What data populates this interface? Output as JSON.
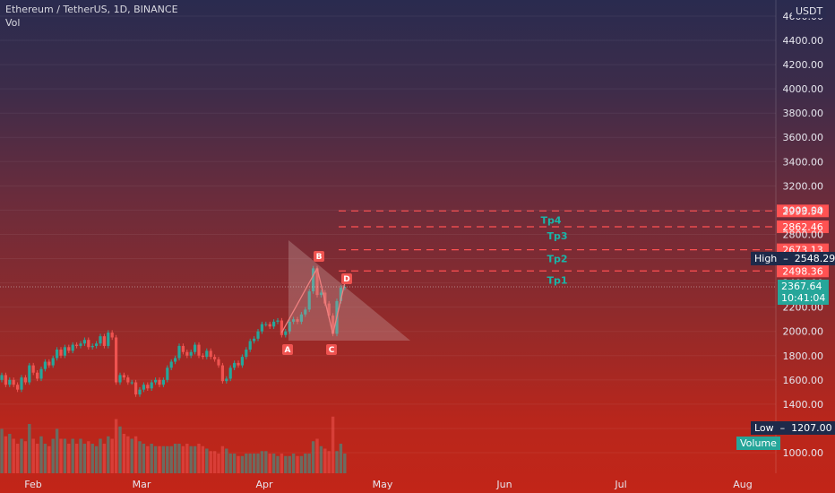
{
  "header": {
    "title": "Ethereum / TetherUS, 1D, BINANCE",
    "vol_label": "Vol"
  },
  "axis": {
    "currency": "USDT",
    "last_price": "2367.64",
    "countdown": "10:41:04"
  },
  "markers": {
    "high_label": "High",
    "high_value": "2548.29",
    "low_label": "Low",
    "low_value": "1207.00",
    "volume_badge": "Volume"
  },
  "colors": {
    "up": "#26a69a",
    "down": "#ef5350",
    "target": "#ff5252",
    "triangle": "#c8a0a0"
  },
  "chart_data": {
    "type": "candlestick",
    "title": "Ethereum / TetherUS, 1D, BINANCE",
    "y_ticks": [
      "1000.00",
      "1200.00",
      "1400.00",
      "1600.00",
      "1800.00",
      "2000.00",
      "2200.00",
      "2400.00",
      "2600.00",
      "2800.00",
      "3000.00",
      "3200.00",
      "3400.00",
      "3600.00",
      "3800.00",
      "4000.00",
      "4200.00",
      "4400.00",
      "4600.00"
    ],
    "x_ticks": [
      "Feb",
      "Mar",
      "Apr",
      "May",
      "Jun",
      "Jul",
      "Aug"
    ],
    "ylim": [
      900,
      4650
    ],
    "targets": [
      {
        "name": "Tp1",
        "price": 2498.36
      },
      {
        "name": "Tp2",
        "price": 2673.13
      },
      {
        "name": "Tp3",
        "price": 2862.46
      },
      {
        "name": "Tp4",
        "price": 2993.54
      }
    ],
    "pattern_points": [
      {
        "label": "A",
        "day": 71,
        "price": 1990
      },
      {
        "label": "B",
        "day": 80,
        "price": 2520
      },
      {
        "label": "C",
        "day": 84,
        "price": 1980
      },
      {
        "label": "D",
        "day": 87,
        "price": 2400
      }
    ],
    "closes": [
      1640,
      1560,
      1600,
      1560,
      1520,
      1620,
      1580,
      1720,
      1660,
      1610,
      1690,
      1750,
      1720,
      1780,
      1850,
      1800,
      1870,
      1840,
      1890,
      1880,
      1900,
      1930,
      1870,
      1880,
      1900,
      1960,
      1880,
      1990,
      1950,
      1580,
      1640,
      1620,
      1580,
      1580,
      1480,
      1520,
      1560,
      1530,
      1580,
      1600,
      1560,
      1600,
      1700,
      1750,
      1780,
      1880,
      1830,
      1800,
      1830,
      1890,
      1800,
      1790,
      1840,
      1790,
      1770,
      1720,
      1590,
      1610,
      1700,
      1740,
      1720,
      1790,
      1850,
      1920,
      1940,
      2000,
      2060,
      2060,
      2040,
      2080,
      2090,
      1970,
      2000,
      2080,
      2100,
      2080,
      2140,
      2180,
      2330,
      2520,
      2300,
      2320,
      2230,
      2130,
      1980,
      2250,
      2360,
      2367
    ],
    "volumes": [
      90,
      75,
      80,
      70,
      60,
      70,
      65,
      100,
      70,
      60,
      75,
      60,
      55,
      70,
      90,
      70,
      70,
      60,
      70,
      60,
      70,
      60,
      65,
      60,
      55,
      70,
      60,
      75,
      70,
      110,
      95,
      80,
      75,
      70,
      75,
      65,
      60,
      55,
      60,
      55,
      55,
      55,
      55,
      55,
      60,
      60,
      55,
      60,
      55,
      55,
      60,
      55,
      50,
      45,
      45,
      40,
      55,
      50,
      40,
      40,
      35,
      35,
      40,
      40,
      40,
      40,
      45,
      45,
      40,
      40,
      35,
      40,
      35,
      35,
      40,
      35,
      35,
      40,
      40,
      65,
      70,
      55,
      50,
      45,
      115,
      45,
      60,
      40
    ]
  }
}
